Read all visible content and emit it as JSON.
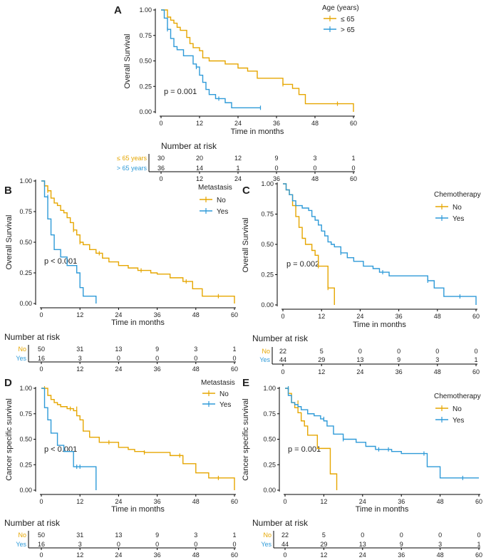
{
  "colors": {
    "group_a": "#E6A600",
    "group_b": "#2E9AD8",
    "axis": "#000000",
    "text": "#222222"
  },
  "common": {
    "xlabel": "Time in months",
    "risk_title": "Number at risk",
    "x_ticks": [
      0,
      12,
      24,
      36,
      48,
      60
    ],
    "y_ticks": [
      0.0,
      0.25,
      0.5,
      0.75,
      1.0
    ],
    "y_tick_labels": [
      "0.00",
      "0.25",
      "0.50",
      "0.75",
      "1.00"
    ]
  },
  "chart_data": [
    {
      "panel": "A",
      "type": "line",
      "step": true,
      "ylabel": "Overall Survival",
      "legend_title": "Age (years)",
      "pvalue": "p = 0.001",
      "xlim": [
        0,
        60
      ],
      "ylim": [
        0,
        1
      ],
      "series": [
        {
          "name": "≤ 65",
          "risk_label": "≤ 65 years",
          "risk": [
            30,
            20,
            12,
            9,
            3,
            1
          ],
          "x": [
            0,
            2,
            3,
            4,
            5,
            6,
            8,
            9,
            10,
            12,
            13,
            15,
            20,
            24,
            27,
            30,
            38,
            41,
            43,
            45,
            50,
            60
          ],
          "y": [
            1.0,
            0.93,
            0.9,
            0.87,
            0.83,
            0.8,
            0.73,
            0.67,
            0.63,
            0.6,
            0.53,
            0.5,
            0.47,
            0.43,
            0.4,
            0.33,
            0.27,
            0.23,
            0.17,
            0.08,
            0.08,
            0.0
          ],
          "censor": [
            [
              38,
              0.27
            ],
            [
              55,
              0.08
            ]
          ]
        },
        {
          "name": "> 65",
          "risk_label": "> 65 years",
          "risk": [
            36,
            14,
            1,
            0,
            0,
            0
          ],
          "x": [
            0,
            1,
            2,
            3,
            4,
            5,
            7,
            10,
            11,
            12,
            13,
            14,
            15,
            17,
            20,
            22,
            31
          ],
          "y": [
            1.0,
            0.92,
            0.81,
            0.72,
            0.64,
            0.61,
            0.55,
            0.47,
            0.44,
            0.36,
            0.29,
            0.22,
            0.17,
            0.13,
            0.09,
            0.04,
            0.04
          ],
          "censor": [
            [
              2,
              0.81
            ],
            [
              11,
              0.44
            ],
            [
              18,
              0.13
            ],
            [
              31,
              0.04
            ]
          ]
        }
      ]
    },
    {
      "panel": "B",
      "type": "line",
      "step": true,
      "ylabel": "Overall Survival",
      "legend_title": "Metastasis",
      "pvalue": "p < 0.001",
      "xlim": [
        0,
        60
      ],
      "ylim": [
        0,
        1
      ],
      "series": [
        {
          "name": "No",
          "risk_label": "No",
          "risk": [
            50,
            31,
            13,
            9,
            3,
            1
          ],
          "x": [
            0,
            1,
            2,
            3,
            4,
            5,
            6,
            7,
            8,
            9,
            10,
            11,
            12,
            13,
            15,
            17,
            19,
            21,
            24,
            27,
            30,
            34,
            36,
            40,
            44,
            47,
            50,
            60
          ],
          "y": [
            1.0,
            0.96,
            0.92,
            0.86,
            0.82,
            0.8,
            0.76,
            0.74,
            0.7,
            0.66,
            0.6,
            0.56,
            0.5,
            0.48,
            0.44,
            0.41,
            0.37,
            0.34,
            0.31,
            0.29,
            0.27,
            0.25,
            0.24,
            0.21,
            0.18,
            0.12,
            0.06,
            0.0
          ],
          "censor": [
            [
              2,
              0.92
            ],
            [
              10,
              0.6
            ],
            [
              12,
              0.5
            ],
            [
              18,
              0.41
            ],
            [
              31,
              0.27
            ],
            [
              45,
              0.18
            ],
            [
              55,
              0.06
            ]
          ]
        },
        {
          "name": "Yes",
          "risk_label": "Yes",
          "risk": [
            16,
            3,
            0,
            0,
            0,
            0
          ],
          "x": [
            0,
            1,
            2,
            3,
            4,
            6,
            8,
            11,
            12,
            13,
            17
          ],
          "y": [
            1.0,
            0.87,
            0.69,
            0.56,
            0.44,
            0.38,
            0.31,
            0.25,
            0.13,
            0.06,
            0.0
          ],
          "censor": [
            [
              2,
              0.87
            ]
          ]
        }
      ]
    },
    {
      "panel": "C",
      "type": "line",
      "step": true,
      "ylabel": "Overall Survival",
      "legend_title": "Chemotherapy",
      "pvalue": "p = 0.002",
      "xlim": [
        0,
        60
      ],
      "ylim": [
        0,
        1
      ],
      "series": [
        {
          "name": "No",
          "risk_label": "No",
          "risk": [
            22,
            5,
            0,
            0,
            0,
            0
          ],
          "x": [
            0,
            1,
            2,
            3,
            4,
            5,
            6,
            7,
            9,
            10,
            11,
            14,
            15,
            16
          ],
          "y": [
            1.0,
            0.95,
            0.91,
            0.82,
            0.73,
            0.64,
            0.55,
            0.5,
            0.45,
            0.41,
            0.32,
            0.14,
            0.14,
            0.0
          ],
          "censor": [
            [
              4,
              0.82
            ],
            [
              11,
              0.32
            ],
            [
              14,
              0.14
            ]
          ]
        },
        {
          "name": "Yes",
          "risk_label": "Yes",
          "risk": [
            44,
            29,
            13,
            9,
            3,
            1
          ],
          "x": [
            0,
            1,
            2,
            3,
            4,
            6,
            8,
            9,
            10,
            11,
            12,
            13,
            14,
            15,
            16,
            18,
            20,
            22,
            25,
            28,
            30,
            33,
            38,
            45,
            47,
            50,
            58,
            60
          ],
          "y": [
            1.0,
            0.95,
            0.91,
            0.86,
            0.82,
            0.8,
            0.78,
            0.73,
            0.7,
            0.66,
            0.61,
            0.57,
            0.52,
            0.5,
            0.48,
            0.43,
            0.39,
            0.36,
            0.32,
            0.3,
            0.27,
            0.24,
            0.24,
            0.2,
            0.14,
            0.07,
            0.07,
            0.0
          ],
          "censor": [
            [
              18,
              0.43
            ],
            [
              31,
              0.27
            ],
            [
              45,
              0.2
            ],
            [
              55,
              0.07
            ]
          ]
        }
      ]
    },
    {
      "panel": "D",
      "type": "line",
      "step": true,
      "ylabel": "Cancer specific survival",
      "legend_title": "Metastasis",
      "pvalue": "p < 0.001",
      "xlim": [
        0,
        60
      ],
      "ylim": [
        0,
        1
      ],
      "series": [
        {
          "name": "No",
          "risk_label": "No",
          "risk": [
            50,
            31,
            13,
            9,
            3,
            1
          ],
          "x": [
            0,
            2,
            3,
            4,
            5,
            6,
            8,
            10,
            11,
            12,
            13,
            15,
            18,
            22,
            24,
            27,
            29,
            32,
            40,
            44,
            48,
            52,
            60
          ],
          "y": [
            1.0,
            0.93,
            0.89,
            0.86,
            0.84,
            0.82,
            0.8,
            0.78,
            0.73,
            0.69,
            0.58,
            0.52,
            0.47,
            0.47,
            0.42,
            0.4,
            0.38,
            0.37,
            0.34,
            0.26,
            0.17,
            0.12,
            0.0
          ],
          "censor": [
            [
              1,
              1.0
            ],
            [
              9,
              0.8
            ],
            [
              11,
              0.8
            ],
            [
              21,
              0.47
            ],
            [
              32,
              0.37
            ],
            [
              43,
              0.34
            ],
            [
              55,
              0.12
            ]
          ]
        },
        {
          "name": "Yes",
          "risk_label": "Yes",
          "risk": [
            16,
            3,
            0,
            0,
            0,
            0
          ],
          "x": [
            0,
            1,
            2,
            3,
            5,
            7,
            10,
            12,
            17
          ],
          "y": [
            1.0,
            0.81,
            0.69,
            0.56,
            0.44,
            0.38,
            0.23,
            0.23,
            0.0
          ],
          "censor": [
            [
              11,
              0.23
            ],
            [
              12,
              0.23
            ]
          ]
        }
      ]
    },
    {
      "panel": "E",
      "type": "line",
      "step": true,
      "ylabel": "Cancer specific survival",
      "legend_title": "Chemotherapy",
      "pvalue": "p = 0.001",
      "xlim": [
        0,
        60
      ],
      "ylim": [
        0,
        1
      ],
      "series": [
        {
          "name": "No",
          "risk_label": "No",
          "risk": [
            22,
            5,
            0,
            0,
            0,
            0
          ],
          "x": [
            0,
            1,
            2,
            3,
            4,
            5,
            6,
            7,
            9,
            10,
            12,
            14,
            16
          ],
          "y": [
            1.0,
            0.95,
            0.86,
            0.81,
            0.76,
            0.68,
            0.63,
            0.54,
            0.54,
            0.41,
            0.41,
            0.16,
            0.0
          ],
          "censor": [
            [
              1,
              1.0
            ],
            [
              4,
              0.86
            ]
          ]
        },
        {
          "name": "Yes",
          "risk_label": "Yes",
          "risk": [
            44,
            29,
            13,
            9,
            3,
            1
          ],
          "x": [
            0,
            1,
            2,
            3,
            4,
            5,
            7,
            9,
            11,
            12,
            13,
            15,
            18,
            22,
            25,
            28,
            33,
            36,
            44,
            48,
            60
          ],
          "y": [
            1.0,
            0.93,
            0.86,
            0.84,
            0.82,
            0.79,
            0.75,
            0.73,
            0.7,
            0.68,
            0.63,
            0.55,
            0.5,
            0.47,
            0.43,
            0.4,
            0.38,
            0.36,
            0.23,
            0.12,
            0.12
          ],
          "censor": [
            [
              1,
              1.0
            ],
            [
              12,
              0.7
            ],
            [
              18,
              0.5
            ],
            [
              29,
              0.4
            ],
            [
              32,
              0.4
            ],
            [
              43,
              0.36
            ],
            [
              55,
              0.12
            ]
          ]
        }
      ]
    }
  ]
}
